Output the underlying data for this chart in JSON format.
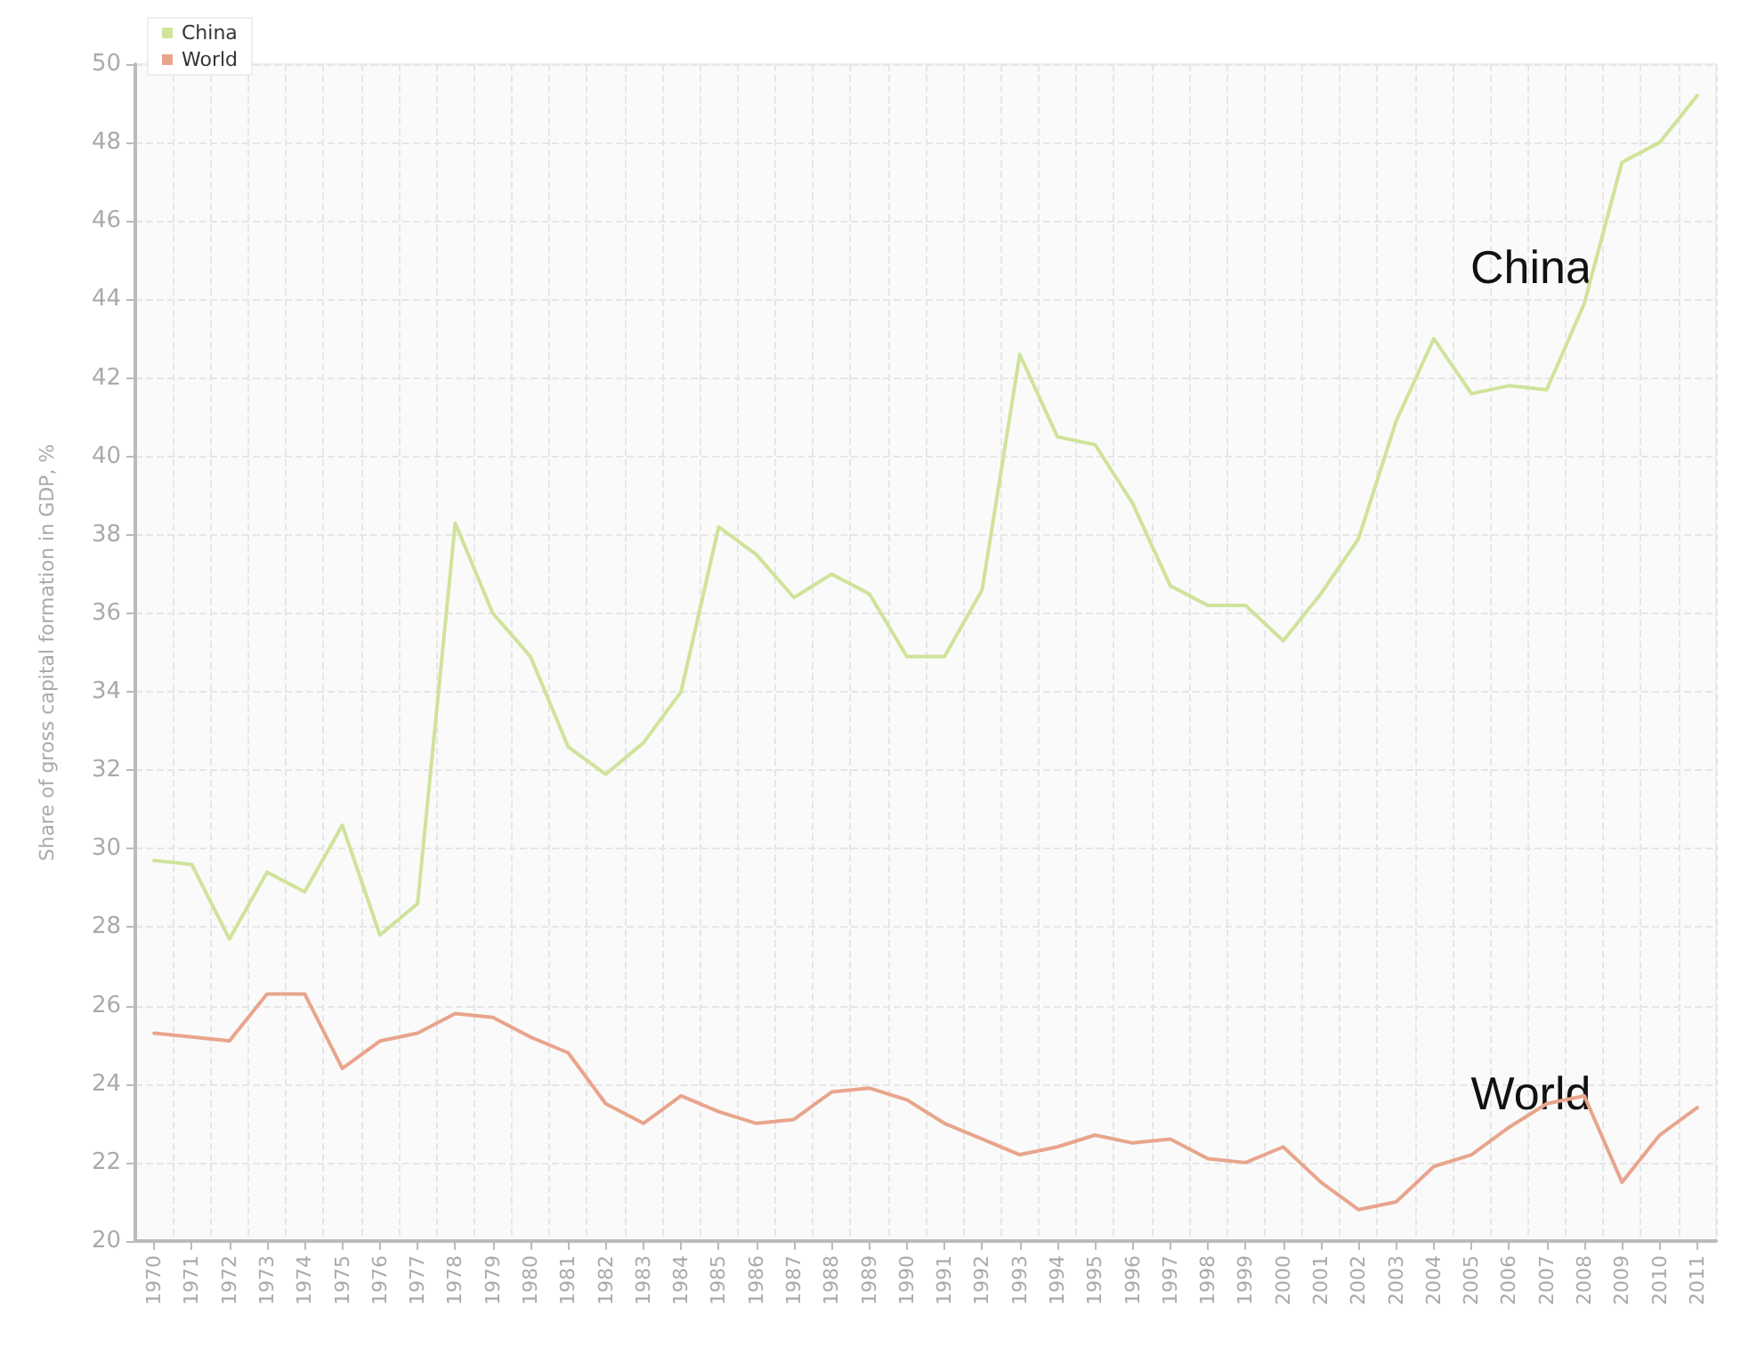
{
  "chart_data": {
    "type": "line",
    "ylabel": "Share of gross capital formation in GDP, %",
    "categories": [
      "1970",
      "1971",
      "1972",
      "1973",
      "1974",
      "1975",
      "1976",
      "1977",
      "1978",
      "1979",
      "1980",
      "1981",
      "1982",
      "1983",
      "1984",
      "1985",
      "1986",
      "1987",
      "1988",
      "1989",
      "1990",
      "1991",
      "1992",
      "1993",
      "1994",
      "1995",
      "1996",
      "1997",
      "1998",
      "1999",
      "2000",
      "2001",
      "2002",
      "2003",
      "2004",
      "2005",
      "2006",
      "2007",
      "2008",
      "2009",
      "2010",
      "2011"
    ],
    "series": [
      {
        "name": "China",
        "color": "#cfe39a",
        "values": [
          29.7,
          29.6,
          27.7,
          29.4,
          28.9,
          30.6,
          27.8,
          28.6,
          38.3,
          36.0,
          34.9,
          32.6,
          31.9,
          32.7,
          34.0,
          38.2,
          37.5,
          36.4,
          37.0,
          36.5,
          34.9,
          34.9,
          36.6,
          42.6,
          40.5,
          40.3,
          38.8,
          36.7,
          36.2,
          36.2,
          35.3,
          36.5,
          37.9,
          40.9,
          43.0,
          41.6,
          41.8,
          41.7,
          43.9,
          47.5,
          48.0,
          49.2
        ]
      },
      {
        "name": "World",
        "color": "#e8a58c",
        "values": [
          25.3,
          25.2,
          25.1,
          26.3,
          26.3,
          24.4,
          25.1,
          25.3,
          25.8,
          25.7,
          25.2,
          24.8,
          23.5,
          23.0,
          23.7,
          23.3,
          23.0,
          23.1,
          23.8,
          23.9,
          23.6,
          23.0,
          22.6,
          22.2,
          22.4,
          22.7,
          22.5,
          22.6,
          22.1,
          22.0,
          22.4,
          21.5,
          20.8,
          21.0,
          21.9,
          22.2,
          22.9,
          23.5,
          23.7,
          21.5,
          22.7,
          23.4
        ]
      }
    ],
    "ylim": [
      20,
      50
    ],
    "yticks": [
      20,
      22,
      24,
      26,
      28,
      30,
      32,
      34,
      36,
      38,
      40,
      42,
      44,
      46,
      48,
      50
    ],
    "annotations": [
      "China",
      "World"
    ],
    "grid": true,
    "legend": "top left",
    "marker": "none",
    "line_style": "solid"
  }
}
